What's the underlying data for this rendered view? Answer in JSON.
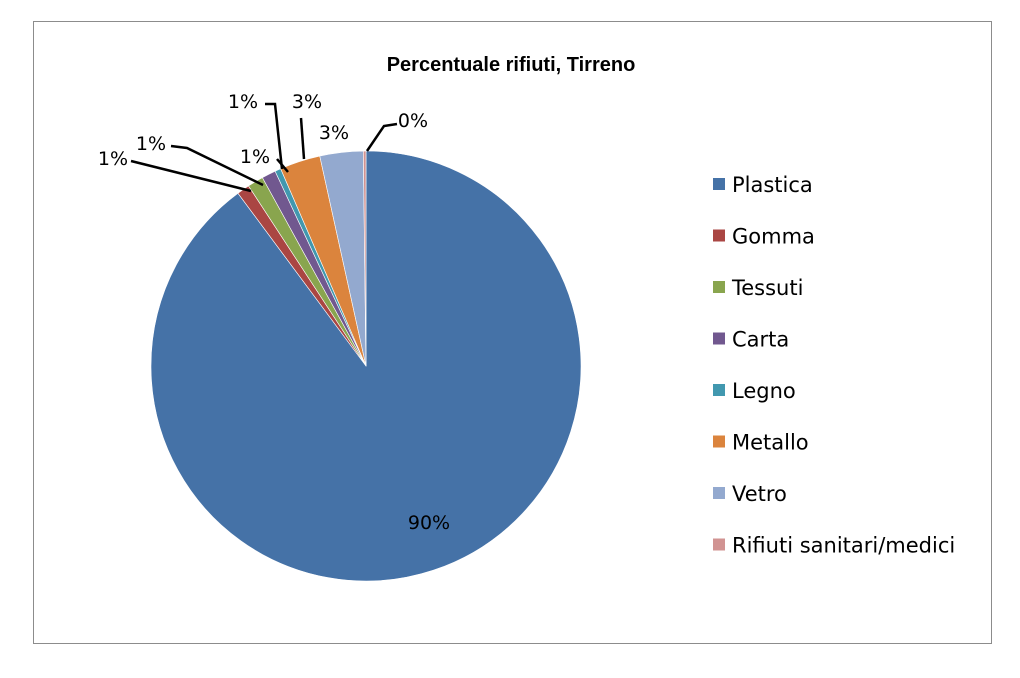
{
  "chart_data": {
    "type": "pie",
    "title": "Percentuale rifiuti, Tirreno",
    "categories": [
      "Plastica",
      "Gomma",
      "Tessuti",
      "Carta",
      "Legno",
      "Metallo",
      "Vetro",
      "Rifiuti sanitari/medici"
    ],
    "values": [
      90,
      1,
      1,
      1,
      1,
      3,
      3,
      0
    ],
    "data_labels": [
      "90%",
      "1%",
      "1%",
      "1%",
      "1%",
      "3%",
      "3%",
      "0%"
    ],
    "colors": [
      "#4572A7",
      "#AA4643",
      "#89A54E",
      "#71588F",
      "#4198AF",
      "#DB843D",
      "#93A9CF",
      "#D19392"
    ],
    "legend_position": "right"
  }
}
